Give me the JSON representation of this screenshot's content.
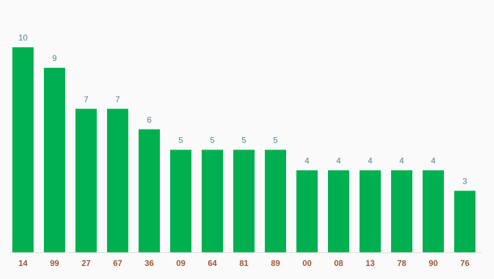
{
  "chart_data": {
    "type": "bar",
    "categories": [
      "14",
      "99",
      "27",
      "67",
      "36",
      "09",
      "64",
      "81",
      "89",
      "00",
      "08",
      "13",
      "78",
      "90",
      "76"
    ],
    "values": [
      10,
      9,
      7,
      7,
      6,
      5,
      5,
      5,
      5,
      4,
      4,
      4,
      4,
      4,
      3
    ],
    "color": "#00b050"
  }
}
